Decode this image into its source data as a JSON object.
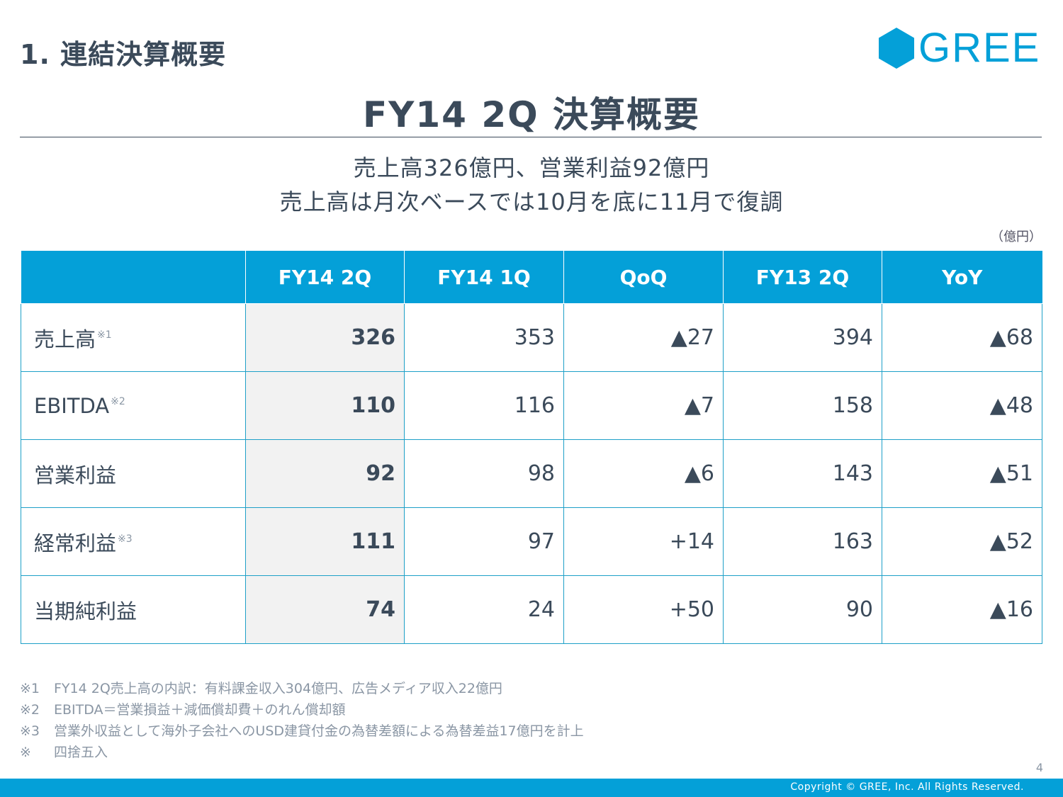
{
  "header": {
    "section_title": "1. 連結決算概要",
    "logo_text": "GREE",
    "brand_color": "#04a0d8"
  },
  "main": {
    "title": "FY14 2Q 決算概要",
    "subtitle_line1": "売上高326億円、営業利益92億円",
    "subtitle_line2": "売上高は月次ベースでは10月を底に11月で復調",
    "unit": "（億円）"
  },
  "table": {
    "headers": [
      "",
      "FY14 2Q",
      "FY14 1Q",
      "QoQ",
      "FY13 2Q",
      "YoY"
    ],
    "rows": [
      {
        "label": "売上高",
        "note": "※1",
        "fy14_2q": "326",
        "fy14_1q": "353",
        "qoq": "▲27",
        "fy13_2q": "394",
        "yoy": "▲68"
      },
      {
        "label": "EBITDA",
        "note": "※2",
        "fy14_2q": "110",
        "fy14_1q": "116",
        "qoq": "▲7",
        "fy13_2q": "158",
        "yoy": "▲48"
      },
      {
        "label": "営業利益",
        "note": "",
        "fy14_2q": "92",
        "fy14_1q": "98",
        "qoq": "▲6",
        "fy13_2q": "143",
        "yoy": "▲51"
      },
      {
        "label": "経常利益",
        "note": "※3",
        "fy14_2q": "111",
        "fy14_1q": "97",
        "qoq": "+14",
        "fy13_2q": "163",
        "yoy": "▲52"
      },
      {
        "label": "当期純利益",
        "note": "",
        "fy14_2q": "74",
        "fy14_1q": "24",
        "qoq": "+50",
        "fy13_2q": "90",
        "yoy": "▲16"
      }
    ]
  },
  "footnotes": [
    {
      "mark": "※1",
      "text": "FY14 2Q売上高の内訳：有料課金収入304億円、広告メディア収入22億円"
    },
    {
      "mark": "※2",
      "text": "EBITDA＝営業損益＋減価償却費＋のれん償却額"
    },
    {
      "mark": "※3",
      "text": "営業外収益として海外子会社へのUSD建貸付金の為替差額による為替差益17億円を計上"
    },
    {
      "mark": "※",
      "text": "四捨五入"
    }
  ],
  "footer": {
    "page_number": "4",
    "copyright": "Copyright © GREE, Inc. All Rights Reserved."
  }
}
